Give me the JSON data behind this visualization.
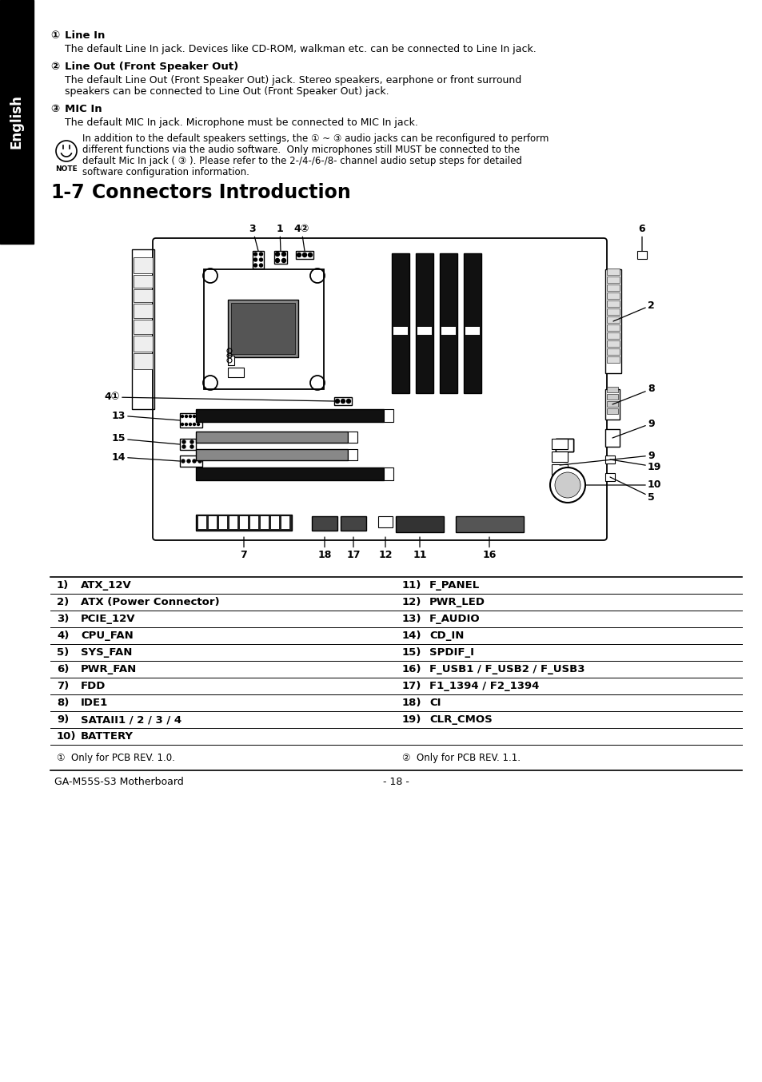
{
  "bg_color": "#ffffff",
  "sidebar_color": "#000000",
  "sidebar_text": "English",
  "footnote_left": "①  Only for PCB REV. 1.0.",
  "footnote_right": "②  Only for PCB REV. 1.1.",
  "footer_left": "GA-M55S-S3 Motherboard",
  "footer_center": "- 18 -",
  "connector_rows_left": [
    [
      "1)",
      "ATX_12V"
    ],
    [
      "2)",
      "ATX (Power Connector)"
    ],
    [
      "3)",
      "PCIE_12V"
    ],
    [
      "4)",
      "CPU_FAN"
    ],
    [
      "5)",
      "SYS_FAN"
    ],
    [
      "6)",
      "PWR_FAN"
    ],
    [
      "7)",
      "FDD"
    ],
    [
      "8)",
      "IDE1"
    ],
    [
      "9)",
      "SATAII1 / 2 / 3 / 4"
    ],
    [
      "10)",
      "BATTERY"
    ]
  ],
  "connector_rows_right": [
    [
      "11)",
      "F_PANEL"
    ],
    [
      "12)",
      "PWR_LED"
    ],
    [
      "13)",
      "F_AUDIO"
    ],
    [
      "14)",
      "CD_IN"
    ],
    [
      "15)",
      "SPDIF_I"
    ],
    [
      "16)",
      "F_USB1 / F_USB2 / F_USB3"
    ],
    [
      "17)",
      "F1_1394 / F2_1394"
    ],
    [
      "18)",
      "CI"
    ],
    [
      "19)",
      "CLR_CMOS"
    ],
    [
      "",
      ""
    ]
  ]
}
